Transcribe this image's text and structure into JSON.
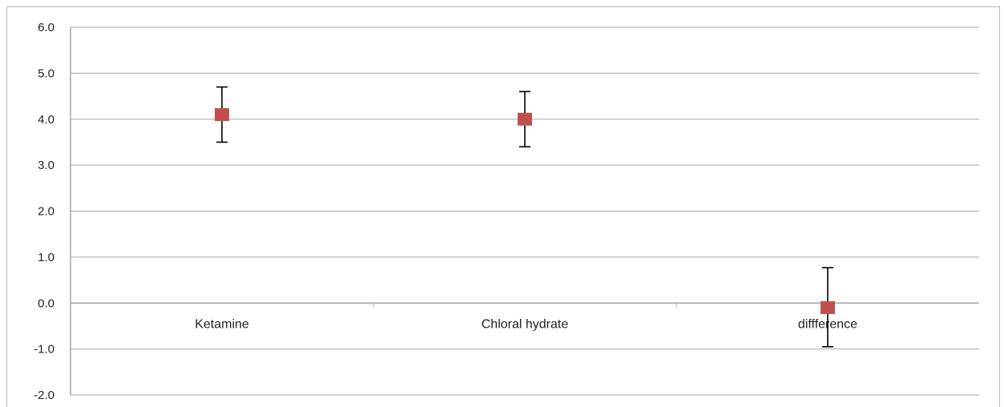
{
  "chart_data": {
    "type": "scatter",
    "categories": [
      "Ketamine",
      "Chloral hydrate",
      "diffference"
    ],
    "values": [
      4.1,
      4.0,
      -0.1
    ],
    "error_low": [
      3.5,
      3.4,
      -0.95
    ],
    "error_high": [
      4.7,
      4.6,
      0.77
    ],
    "yticks": [
      "6.0",
      "5.0",
      "4.0",
      "3.0",
      "2.0",
      "1.0",
      "0.0",
      "-1.0",
      "-2.0"
    ],
    "ylim": [
      -2,
      6
    ],
    "grid": true,
    "marker_color": "#c0504d",
    "error_bar_color": "#000000",
    "title": "",
    "xlabel": "",
    "ylabel": ""
  }
}
